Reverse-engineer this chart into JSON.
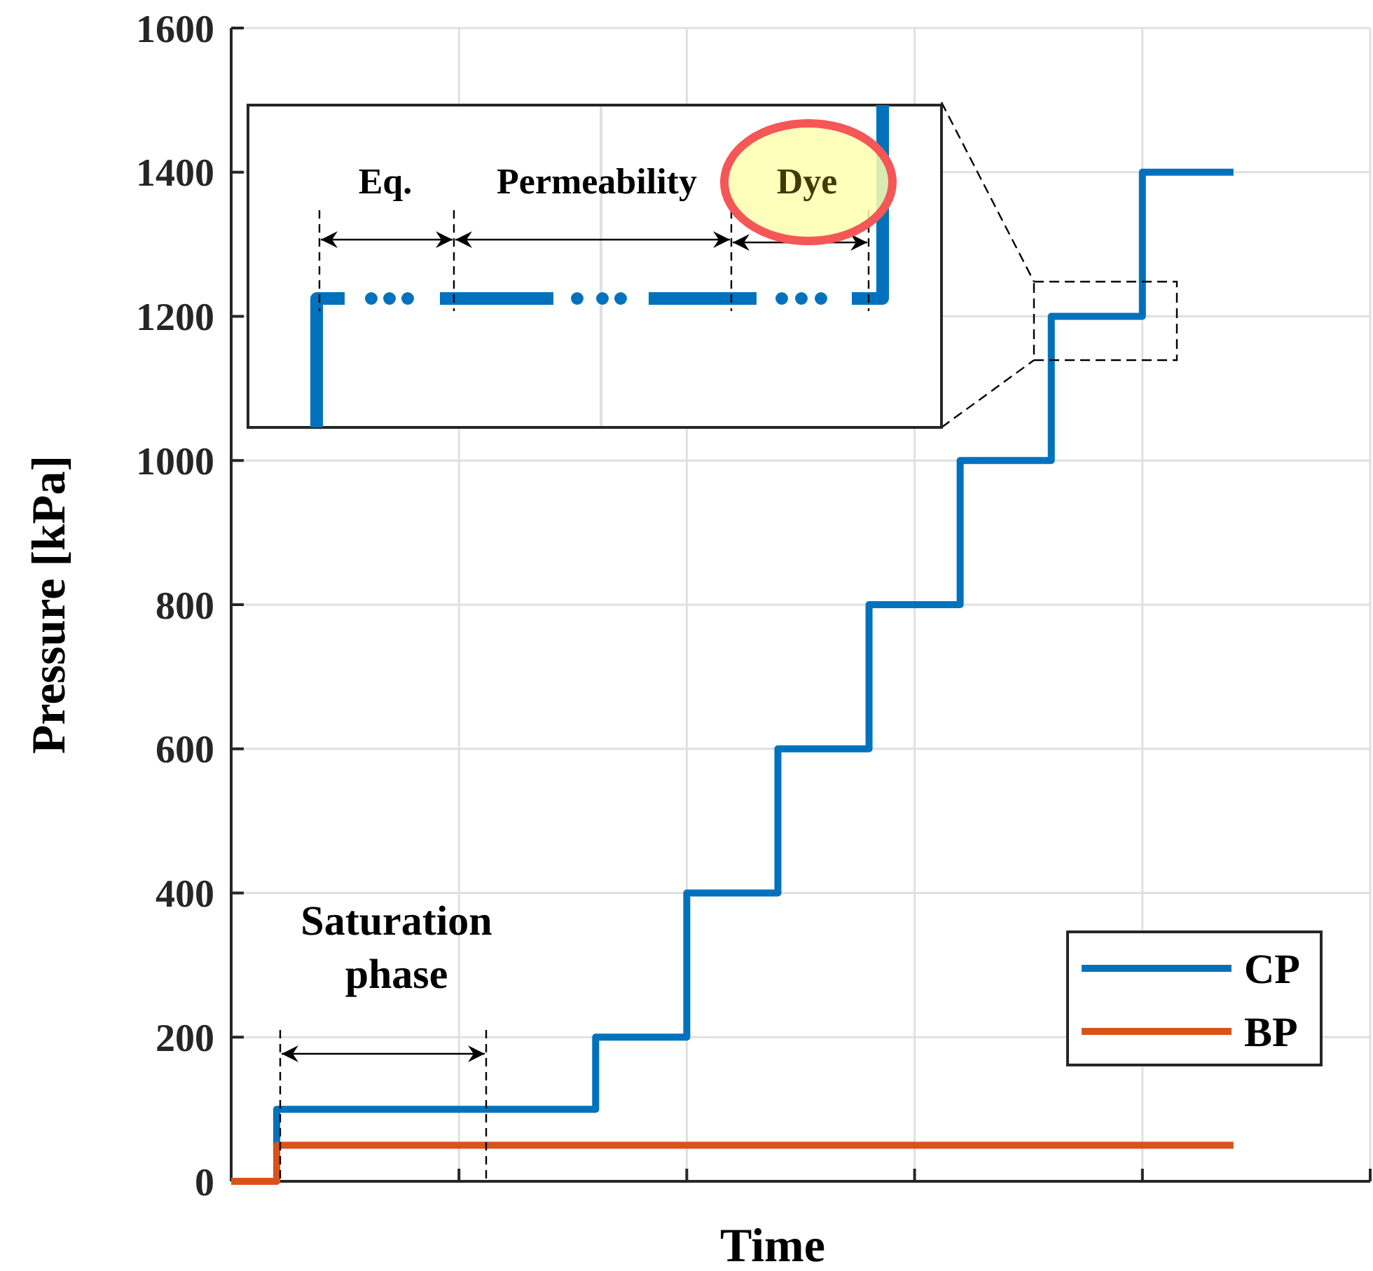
{
  "chart_data": {
    "type": "step",
    "xlabel": "Time",
    "ylabel": "Pressure [kPa]",
    "categories": [
      null,
      null,
      null,
      null,
      null,
      null,
      null,
      null,
      null,
      null,
      null,
      null,
      null,
      null,
      null,
      null,
      null,
      null,
      null,
      null,
      null,
      null,
      null
    ],
    "ylim": [
      0,
      1600
    ],
    "yticks": [
      0,
      200,
      400,
      600,
      800,
      1000,
      1200,
      1400,
      1600
    ],
    "series": [
      {
        "name": "CP",
        "color": "#0072bd",
        "values": [
          0,
          100,
          100,
          100,
          100,
          100,
          100,
          100,
          200,
          200,
          400,
          400,
          600,
          600,
          800,
          800,
          1000,
          1000,
          1200,
          1200,
          1400,
          1400,
          1400
        ]
      },
      {
        "name": "BP",
        "color": "#d95319",
        "values": [
          0,
          50,
          50,
          50,
          50,
          50,
          50,
          50,
          50,
          50,
          50,
          50,
          50,
          50,
          50,
          50,
          50,
          50,
          50,
          50,
          50,
          50,
          50
        ]
      }
    ],
    "annotations": [
      "Saturation phase",
      "Eq.",
      "Permeability",
      "Dye"
    ],
    "grid": true,
    "legend": "bottom right"
  }
}
